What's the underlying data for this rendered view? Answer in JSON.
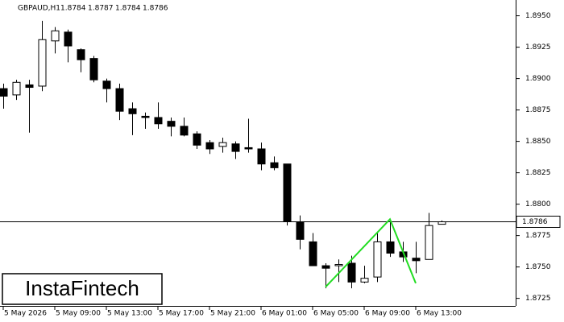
{
  "chart_data": {
    "type": "candlestick",
    "symbol": "GBPAUD,H1",
    "header_values": [
      1.8784,
      1.8787,
      1.8784,
      1.8786
    ],
    "categories": [
      "5 May 2026",
      null,
      null,
      null,
      "5 May 09:00",
      null,
      null,
      null,
      "5 May 13:00",
      null,
      null,
      null,
      "5 May 17:00",
      null,
      null,
      null,
      "5 May 21:00",
      null,
      null,
      null,
      "6 May 01:00",
      null,
      null,
      null,
      "6 May 05:00",
      null,
      null,
      null,
      "6 May 09:00",
      null,
      null,
      null,
      "6 May 13:00",
      null,
      null
    ],
    "open": [
      1.8892,
      1.8887,
      1.8895,
      1.8894,
      1.893,
      1.8937,
      1.8923,
      1.8916,
      1.8898,
      1.8892,
      1.8876,
      1.887,
      1.8869,
      1.8866,
      1.8862,
      1.8856,
      1.8849,
      1.8846,
      1.8848,
      1.8845,
      1.8844,
      1.8833,
      1.8832,
      1.8786,
      1.877,
      1.8751,
      1.8751,
      1.8753,
      1.8738,
      1.8742,
      1.877,
      1.8762,
      1.8757,
      1.8756,
      1.8784
    ],
    "high": [
      1.8896,
      1.8899,
      1.8899,
      1.8946,
      1.8941,
      1.8939,
      1.8924,
      1.8918,
      1.89,
      1.8896,
      1.8881,
      1.8873,
      1.8881,
      1.8869,
      1.8869,
      1.8858,
      1.8851,
      1.8853,
      1.885,
      1.8868,
      1.8849,
      1.8838,
      1.8832,
      1.8791,
      1.8777,
      1.8753,
      1.8756,
      1.8759,
      1.8751,
      1.8777,
      1.8788,
      1.877,
      1.877,
      1.8793,
      1.8787
    ],
    "low": [
      1.8876,
      1.8883,
      1.8857,
      1.889,
      1.892,
      1.8913,
      1.8905,
      1.8897,
      1.8881,
      1.8867,
      1.8855,
      1.886,
      1.886,
      1.8854,
      1.8854,
      1.8844,
      1.884,
      1.8841,
      1.8836,
      1.8841,
      1.8827,
      1.8827,
      1.8783,
      1.8764,
      1.8751,
      1.8733,
      1.8738,
      1.8733,
      1.8737,
      1.8738,
      1.8758,
      1.8754,
      1.8745,
      1.8756,
      1.8784
    ],
    "close": [
      1.8886,
      1.8897,
      1.8893,
      1.8931,
      1.8938,
      1.8926,
      1.8915,
      1.8899,
      1.8892,
      1.8874,
      1.8872,
      1.8869,
      1.8864,
      1.8862,
      1.8855,
      1.8847,
      1.8844,
      1.8849,
      1.8842,
      1.8844,
      1.8832,
      1.8829,
      1.8786,
      1.8772,
      1.8751,
      1.8749,
      1.8752,
      1.8738,
      1.8741,
      1.877,
      1.8761,
      1.8758,
      1.8755,
      1.8783,
      1.8786
    ],
    "ylim": [
      1.8719,
      1.896
    ],
    "yticks": [
      {
        "value": 1.895,
        "label": "1.8950"
      },
      1.8925,
      {
        "value": 1.89,
        "label": "1.8900"
      },
      1.8875,
      {
        "value": 1.885,
        "label": "1.8850"
      },
      1.8825,
      {
        "value": 1.88,
        "label": "1.8800"
      },
      1.8775,
      {
        "value": 1.875,
        "label": "1.8750"
      },
      1.8725
    ],
    "last_price": 1.8786,
    "pattern": {
      "color": "#22dd22",
      "points": [
        {
          "index": 25,
          "value": 1.8734
        },
        {
          "index": 30,
          "value": 1.8788
        },
        {
          "index": 32,
          "value": 1.8737
        }
      ]
    },
    "logo": "InstaFintech"
  }
}
